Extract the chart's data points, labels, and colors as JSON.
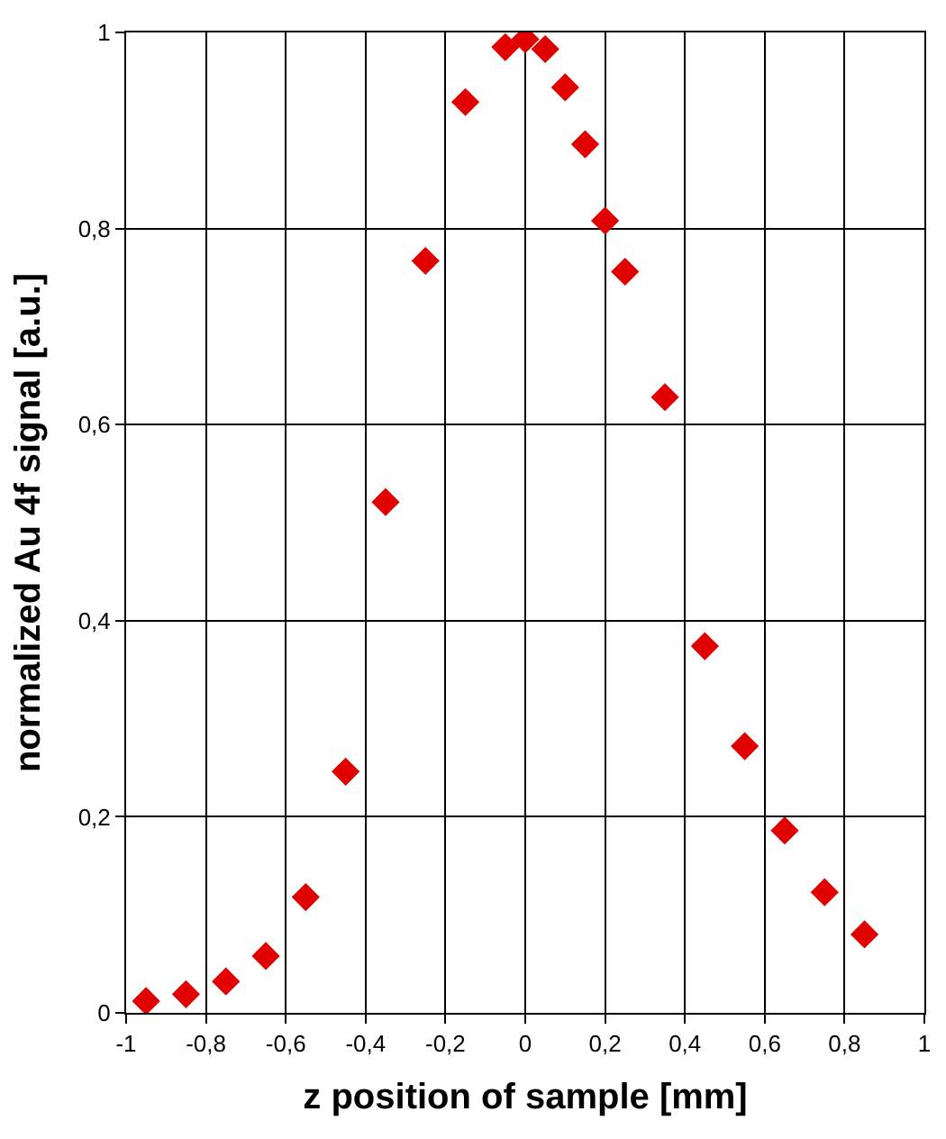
{
  "chart_data": {
    "type": "scatter",
    "xlabel": "z position of sample [mm]",
    "ylabel": "normalized Au 4f signal [a.u.]",
    "x": [
      -0.95,
      -0.85,
      -0.75,
      -0.65,
      -0.55,
      -0.45,
      -0.35,
      -0.25,
      -0.15,
      -0.05,
      0,
      0.05,
      0.1,
      0.15,
      0.2,
      0.25,
      0.35,
      0.45,
      0.55,
      0.65,
      0.75,
      0.85
    ],
    "series": [
      {
        "color": "#e00000",
        "values": [
          0.012,
          0.019,
          0.032,
          0.058,
          0.118,
          0.246,
          0.521,
          0.767,
          0.929,
          0.985,
          0.993,
          0.983,
          0.944,
          0.886,
          0.808,
          0.756,
          0.628,
          0.374,
          0.272,
          0.186,
          0.123,
          0.08
        ]
      }
    ],
    "xlim": [
      -1,
      1
    ],
    "ylim": [
      0,
      1
    ],
    "xticks": [
      {
        "value": -1,
        "label": "-1"
      },
      {
        "value": -0.8,
        "label": "-0,8"
      },
      {
        "value": -0.6,
        "label": "-0,6"
      },
      {
        "value": -0.4,
        "label": "-0,4"
      },
      {
        "value": -0.2,
        "label": "-0,2"
      },
      {
        "value": 0,
        "label": "0"
      },
      {
        "value": 0.2,
        "label": "0,2"
      },
      {
        "value": 0.4,
        "label": "0,4"
      },
      {
        "value": 0.6,
        "label": "0,6"
      },
      {
        "value": 0.8,
        "label": "0,8"
      },
      {
        "value": 1,
        "label": "1"
      }
    ],
    "yticks": [
      {
        "value": 0,
        "label": "0"
      },
      {
        "value": 0.2,
        "label": "0,2"
      },
      {
        "value": 0.4,
        "label": "0,4"
      },
      {
        "value": 0.6,
        "label": "0,6"
      },
      {
        "value": 0.8,
        "label": "0,8"
      },
      {
        "value": 1,
        "label": "1"
      }
    ],
    "grid": true,
    "marker": "diamond"
  }
}
